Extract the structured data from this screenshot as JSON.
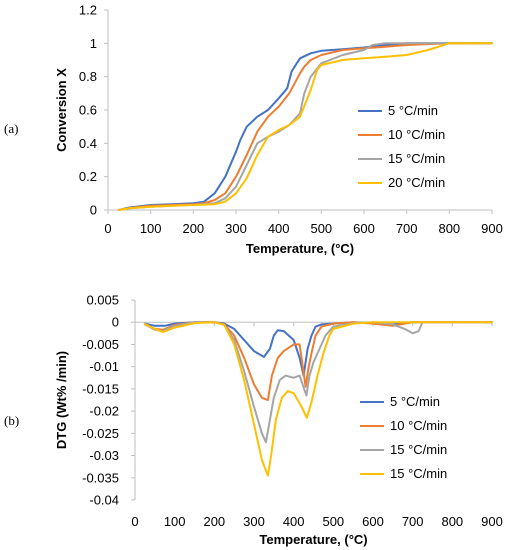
{
  "chart_data": [
    {
      "type": "line",
      "panel_label": "(a)",
      "xlabel": "Temperature, (°C)",
      "ylabel": "Conversion X",
      "xlim": [
        0,
        900
      ],
      "ylim": [
        0,
        1.2
      ],
      "xticks": [
        0,
        100,
        200,
        300,
        400,
        500,
        600,
        700,
        800,
        900
      ],
      "yticks": [
        0,
        0.2,
        0.4,
        0.6,
        0.8,
        1,
        1.2
      ],
      "ytick_labels": [
        "0",
        "0.2",
        "0.4",
        "0.6",
        "0.8",
        "1",
        "1.2"
      ],
      "grid": false,
      "legend_position": "right",
      "series": [
        {
          "name": "5 °C/min",
          "color": "#4472C4",
          "x": [
            25,
            50,
            100,
            150,
            200,
            225,
            250,
            275,
            300,
            310,
            325,
            350,
            375,
            400,
            420,
            430,
            440,
            450,
            475,
            500,
            550,
            600,
            650,
            700,
            800,
            900
          ],
          "y": [
            0,
            0.015,
            0.03,
            0.035,
            0.04,
            0.05,
            0.1,
            0.2,
            0.35,
            0.42,
            0.5,
            0.56,
            0.6,
            0.67,
            0.73,
            0.83,
            0.87,
            0.91,
            0.94,
            0.955,
            0.965,
            0.975,
            0.99,
            1,
            1,
            1
          ]
        },
        {
          "name": "10 °C/min",
          "color": "#ED7D31",
          "x": [
            25,
            50,
            100,
            150,
            200,
            225,
            250,
            275,
            300,
            325,
            350,
            375,
            400,
            425,
            450,
            460,
            475,
            500,
            550,
            600,
            650,
            700,
            800,
            900
          ],
          "y": [
            0,
            0.012,
            0.025,
            0.03,
            0.035,
            0.04,
            0.06,
            0.1,
            0.2,
            0.33,
            0.47,
            0.56,
            0.62,
            0.7,
            0.82,
            0.86,
            0.9,
            0.93,
            0.96,
            0.97,
            0.98,
            0.99,
            1,
            1
          ]
        },
        {
          "name": "15 °C/min",
          "color": "#A5A5A5",
          "x": [
            25,
            50,
            100,
            150,
            200,
            250,
            275,
            300,
            325,
            350,
            375,
            400,
            425,
            450,
            460,
            475,
            500,
            550,
            600,
            620,
            650,
            700,
            800,
            900
          ],
          "y": [
            0,
            0.01,
            0.02,
            0.025,
            0.03,
            0.04,
            0.07,
            0.14,
            0.27,
            0.4,
            0.44,
            0.47,
            0.51,
            0.58,
            0.7,
            0.8,
            0.88,
            0.93,
            0.96,
            0.99,
            1,
            1,
            1,
            1
          ]
        },
        {
          "name": "20 °C/min",
          "color": "#FFC000",
          "x": [
            25,
            50,
            100,
            150,
            200,
            250,
            275,
            300,
            325,
            350,
            375,
            400,
            425,
            450,
            475,
            490,
            500,
            550,
            600,
            650,
            700,
            750,
            800,
            900
          ],
          "y": [
            0,
            0.01,
            0.02,
            0.025,
            0.03,
            0.035,
            0.05,
            0.1,
            0.19,
            0.33,
            0.44,
            0.48,
            0.51,
            0.56,
            0.72,
            0.84,
            0.87,
            0.9,
            0.91,
            0.92,
            0.93,
            0.96,
            1,
            1
          ]
        }
      ]
    },
    {
      "type": "line",
      "panel_label": "(b)",
      "xlabel": "Temperature, (°C)",
      "ylabel": "DTG (Wt% /min)",
      "xlim": [
        0,
        900
      ],
      "ylim": [
        -0.04,
        0.005
      ],
      "xticks": [
        0,
        100,
        200,
        300,
        400,
        500,
        600,
        700,
        800,
        900
      ],
      "yticks": [
        0.005,
        0,
        -0.005,
        -0.01,
        -0.015,
        -0.02,
        -0.025,
        -0.03,
        -0.035,
        -0.04
      ],
      "ytick_labels": [
        "0.005",
        "0",
        "-0.005",
        "-0.01",
        "-0.015",
        "-0.02",
        "-0.025",
        "-0.03",
        "-0.035",
        "-0.04"
      ],
      "grid": false,
      "legend_position": "right",
      "series": [
        {
          "name": "5 °C/min",
          "color": "#4472C4",
          "x": [
            25,
            50,
            75,
            100,
            150,
            200,
            225,
            250,
            275,
            300,
            325,
            340,
            350,
            360,
            375,
            400,
            415,
            425,
            430,
            435,
            445,
            455,
            470,
            500,
            550,
            600,
            650,
            700,
            800,
            900
          ],
          "y": [
            -0.0003,
            -0.0008,
            -0.0008,
            -0.0003,
            0,
            0,
            -0.0003,
            -0.0015,
            -0.004,
            -0.0065,
            -0.0078,
            -0.006,
            -0.003,
            -0.0018,
            -0.002,
            -0.004,
            -0.008,
            -0.012,
            -0.009,
            -0.006,
            -0.003,
            -0.001,
            -0.0005,
            -0.0003,
            0,
            -0.0002,
            -0.0005,
            0,
            0,
            0
          ]
        },
        {
          "name": "10 °C/min",
          "color": "#ED7D31",
          "x": [
            25,
            50,
            70,
            100,
            150,
            200,
            225,
            250,
            275,
            300,
            320,
            335,
            345,
            360,
            375,
            400,
            415,
            430,
            438,
            445,
            455,
            470,
            500,
            550,
            600,
            650,
            700,
            800,
            900
          ],
          "y": [
            -0.0004,
            -0.0015,
            -0.0017,
            -0.0006,
            0,
            0,
            -0.0005,
            -0.003,
            -0.008,
            -0.014,
            -0.017,
            -0.0175,
            -0.012,
            -0.008,
            -0.0065,
            -0.005,
            -0.005,
            -0.0145,
            -0.01,
            -0.007,
            -0.003,
            -0.001,
            -0.0003,
            0,
            -0.0003,
            -0.0008,
            0,
            0,
            0
          ]
        },
        {
          "name": "15 °C/min",
          "color": "#A5A5A5",
          "x": [
            25,
            50,
            70,
            100,
            150,
            200,
            225,
            250,
            275,
            300,
            320,
            330,
            340,
            350,
            365,
            380,
            400,
            415,
            432,
            440,
            450,
            465,
            480,
            500,
            550,
            600,
            650,
            680,
            700,
            715,
            725,
            750,
            800,
            900
          ],
          "y": [
            -0.0005,
            -0.0017,
            -0.002,
            -0.0008,
            0,
            0,
            -0.0006,
            -0.004,
            -0.011,
            -0.019,
            -0.025,
            -0.027,
            -0.022,
            -0.017,
            -0.013,
            -0.012,
            -0.0125,
            -0.012,
            -0.0165,
            -0.012,
            -0.009,
            -0.006,
            -0.003,
            -0.001,
            -0.0002,
            0,
            -0.0005,
            -0.0015,
            -0.0025,
            -0.002,
            0,
            0,
            0,
            0
          ]
        },
        {
          "name": "15 °C/min",
          "color": "#FFC000",
          "x": [
            25,
            50,
            70,
            100,
            150,
            200,
            225,
            250,
            275,
            300,
            320,
            335,
            343,
            355,
            370,
            385,
            400,
            420,
            433,
            445,
            460,
            475,
            490,
            500,
            550,
            600,
            650,
            700,
            750,
            800,
            900
          ],
          "y": [
            -0.0004,
            -0.0015,
            -0.0022,
            -0.0012,
            -0.0002,
            0,
            -0.0006,
            -0.005,
            -0.013,
            -0.023,
            -0.031,
            -0.0345,
            -0.03,
            -0.022,
            -0.017,
            -0.0155,
            -0.016,
            -0.019,
            -0.0215,
            -0.018,
            -0.012,
            -0.007,
            -0.003,
            -0.0015,
            -0.0003,
            0,
            0,
            0,
            0,
            0,
            0
          ]
        }
      ]
    }
  ]
}
